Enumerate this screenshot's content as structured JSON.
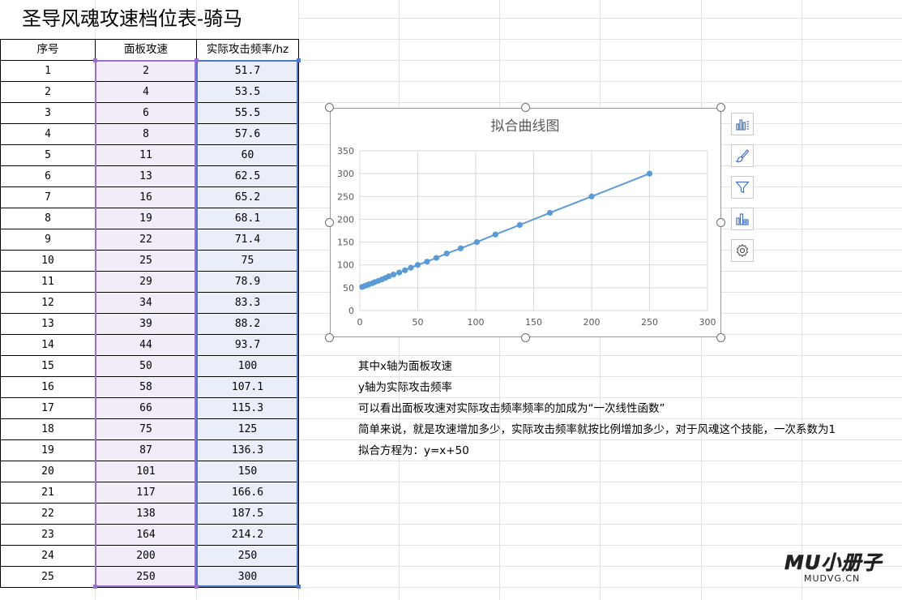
{
  "sheet_title": "圣导风魂攻速档位表-骑马",
  "table": {
    "headers": [
      "序号",
      "面板攻速",
      "实际攻击频率/hz"
    ],
    "rows": [
      [
        "1",
        "2",
        "51.7"
      ],
      [
        "2",
        "4",
        "53.5"
      ],
      [
        "3",
        "6",
        "55.5"
      ],
      [
        "4",
        "8",
        "57.6"
      ],
      [
        "5",
        "11",
        "60"
      ],
      [
        "6",
        "13",
        "62.5"
      ],
      [
        "7",
        "16",
        "65.2"
      ],
      [
        "8",
        "19",
        "68.1"
      ],
      [
        "9",
        "22",
        "71.4"
      ],
      [
        "10",
        "25",
        "75"
      ],
      [
        "11",
        "29",
        "78.9"
      ],
      [
        "12",
        "34",
        "83.3"
      ],
      [
        "13",
        "39",
        "88.2"
      ],
      [
        "14",
        "44",
        "93.7"
      ],
      [
        "15",
        "50",
        "100"
      ],
      [
        "16",
        "58",
        "107.1"
      ],
      [
        "17",
        "66",
        "115.3"
      ],
      [
        "18",
        "75",
        "125"
      ],
      [
        "19",
        "87",
        "136.3"
      ],
      [
        "20",
        "101",
        "150"
      ],
      [
        "21",
        "117",
        "166.6"
      ],
      [
        "22",
        "138",
        "187.5"
      ],
      [
        "23",
        "164",
        "214.2"
      ],
      [
        "24",
        "200",
        "250"
      ],
      [
        "25",
        "250",
        "300"
      ]
    ]
  },
  "chart_data": {
    "type": "scatter",
    "title": "拟合曲线图",
    "xlabel": "",
    "ylabel": "",
    "xlim": [
      0,
      300
    ],
    "ylim": [
      0,
      350
    ],
    "x_ticks": [
      "0",
      "50",
      "100",
      "150",
      "200",
      "250",
      "300"
    ],
    "y_ticks": [
      "0",
      "50",
      "100",
      "150",
      "200",
      "250",
      "300",
      "350"
    ],
    "grid": true,
    "connected": true,
    "series": [
      {
        "color": "#5b9bd5",
        "x": [
          2,
          4,
          6,
          8,
          11,
          13,
          16,
          19,
          22,
          25,
          29,
          34,
          39,
          44,
          50,
          58,
          66,
          75,
          87,
          101,
          117,
          138,
          164,
          200,
          250
        ],
        "y": [
          51.7,
          53.5,
          55.5,
          57.6,
          60,
          62.5,
          65.2,
          68.1,
          71.4,
          75,
          78.9,
          83.3,
          88.2,
          93.7,
          100,
          107.1,
          115.3,
          125,
          136.3,
          150,
          166.6,
          187.5,
          214.2,
          250,
          300
        ]
      }
    ]
  },
  "chart_side_buttons": [
    {
      "icon": "chart-elements-icon"
    },
    {
      "icon": "chart-style-brush-icon"
    },
    {
      "icon": "chart-filter-icon"
    },
    {
      "icon": "chart-type-icon"
    },
    {
      "icon": "chart-settings-gear-icon"
    }
  ],
  "notes": [
    "其中x轴为面板攻速",
    "y轴为实际攻击频率",
    "可以看出面板攻速对实际攻击频率频率的加成为“一次线性函数”",
    "简单来说，就是攻速增加多少，实际攻击频率就按比例增加多少，对于风魂这个技能，一次系数为1",
    "拟合方程为：y=x+50"
  ],
  "watermark": {
    "main": "MU小册子",
    "sub": "MUDVG.CN"
  },
  "colors": {
    "speed_col_fill": "#f1ecf8",
    "speed_col_border": "#9d6fcf",
    "freq_col_fill": "#e9eef9",
    "freq_col_border": "#4d78c9",
    "series": "#5b9bd5",
    "gridline": "#d9d9d9"
  }
}
